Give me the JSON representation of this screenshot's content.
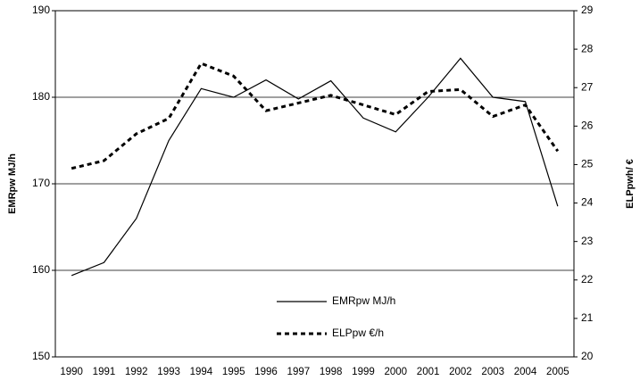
{
  "chart_data": {
    "type": "line",
    "x": [
      "1990",
      "1991",
      "1992",
      "1993",
      "1994",
      "1995",
      "1996",
      "1997",
      "1998",
      "1999",
      "2000",
      "2001",
      "2002",
      "2003",
      "2004",
      "2005"
    ],
    "y_label": "EMRpw MJ/h",
    "y2_label": "ELPpwh/ €",
    "ylim": [
      150,
      190
    ],
    "yticks": [
      150,
      160,
      170,
      180,
      190
    ],
    "y2lim": [
      20,
      29
    ],
    "y2ticks": [
      20,
      21,
      22,
      23,
      24,
      25,
      26,
      27,
      28,
      29
    ],
    "grid": true,
    "series": [
      {
        "name": "EMRpw MJ/h",
        "color": "#000000",
        "dash": "solid",
        "values": [
          159.4,
          160.9,
          166,
          175,
          181,
          180,
          182,
          179.8,
          181.9,
          177.6,
          176,
          180,
          184.5,
          180,
          179.5,
          167.4
        ]
      },
      {
        "name": "ELPpw €/h",
        "color": "#000000",
        "dash": "dashed",
        "axis": "y2",
        "values": [
          24.9,
          25.1,
          25.8,
          26.2,
          27.63,
          27.3,
          26.4,
          26.6,
          26.8,
          26.55,
          26.3,
          26.9,
          26.95,
          26.25,
          26.55,
          25.35
        ]
      }
    ]
  }
}
